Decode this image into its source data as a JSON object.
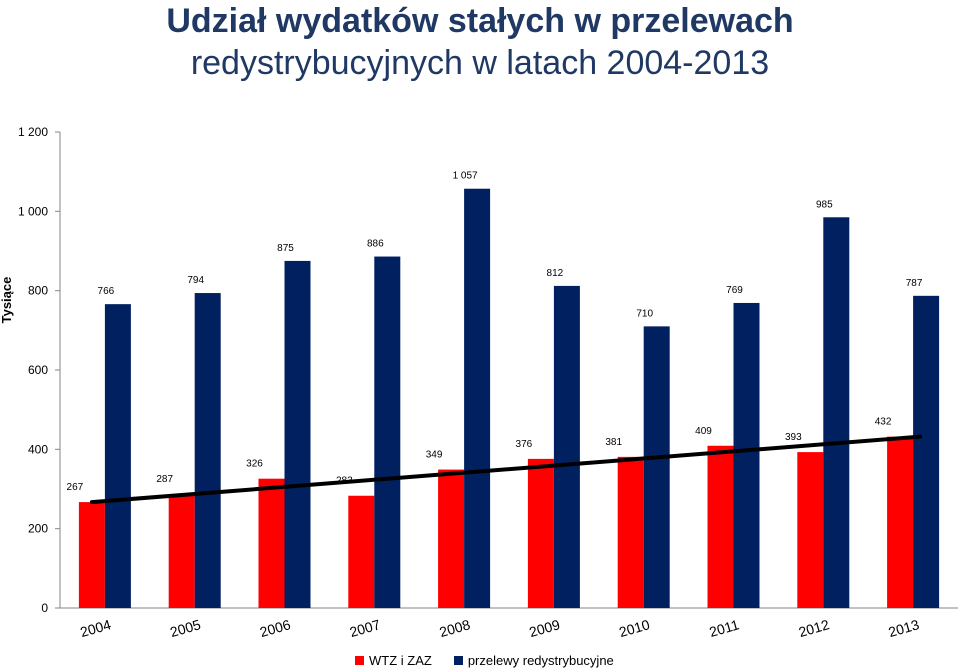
{
  "title_line1": "Udział wydatków stałych w  przelewach",
  "title_line2": "redystrybucyjnych w latach 2004-2013",
  "chart_data": {
    "type": "bar",
    "ylabel": "Tysiące",
    "ylim": [
      0,
      1200
    ],
    "yticks": [
      0,
      200,
      400,
      600,
      800,
      1000,
      1200
    ],
    "ytick_labels": [
      "0",
      "200",
      "400",
      "600",
      "800",
      "1 000",
      "1 200"
    ],
    "grid": false,
    "legend_position": "bottom",
    "categories": [
      "2004",
      "2005",
      "2006",
      "2007",
      "2008",
      "2009",
      "2010",
      "2011",
      "2012",
      "2013"
    ],
    "series": [
      {
        "name": "WTZ i ZAZ",
        "color": "#ff0000",
        "values": [
          267,
          287,
          326,
          283,
          349,
          376,
          381,
          409,
          393,
          432
        ],
        "labels": [
          "267",
          "287",
          "326",
          "283",
          "349",
          "376",
          "381",
          "409",
          "393",
          "432"
        ]
      },
      {
        "name": "przelewy redystrybucyjne",
        "color": "#002060",
        "values": [
          766,
          794,
          875,
          886,
          1057,
          812,
          710,
          769,
          985,
          787
        ],
        "labels": [
          "766",
          "794",
          "875",
          "886",
          "1 057",
          "812",
          "710",
          "769",
          "985",
          "787"
        ]
      }
    ],
    "trendline": {
      "series": "WTZ i ZAZ",
      "color": "#000000",
      "from": 267,
      "to": 432
    }
  }
}
